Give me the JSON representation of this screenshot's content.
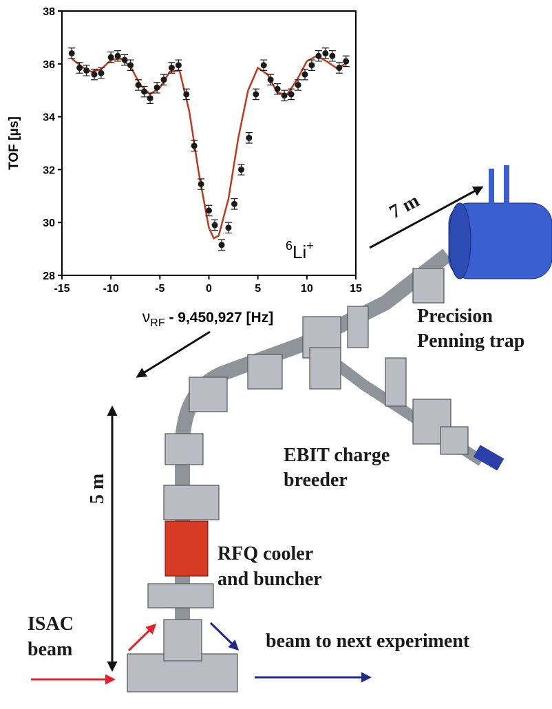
{
  "chart_data": {
    "type": "scatter",
    "ylabel": "TOF [μs]",
    "xlabel": [
      "ν",
      "RF",
      " - 9,450,927 [Hz]"
    ],
    "annotation": [
      "6",
      "Li",
      "+"
    ],
    "xlim": [
      -15,
      15
    ],
    "xticks": [
      -15,
      -10,
      -5,
      0,
      5,
      10,
      15
    ],
    "ylim": [
      28,
      38
    ],
    "yticks": [
      28,
      30,
      32,
      34,
      36,
      38
    ],
    "series": [
      {
        "type": "scatter",
        "color": "#1a1a1a",
        "x": [
          -14,
          -13.2,
          -12.5,
          -11.7,
          -11,
          -10,
          -9.3,
          -8.6,
          -8,
          -7.2,
          -6.6,
          -6,
          -5.3,
          -4.6,
          -3.8,
          -3.1,
          -2.3,
          -1.5,
          -0.8,
          0,
          0.6,
          1.3,
          2,
          2.6,
          3.3,
          4.1,
          4.8,
          5.6,
          6.3,
          7,
          7.7,
          8.4,
          9.1,
          9.8,
          10.5,
          11.2,
          11.9,
          12.6,
          13.3,
          14
        ],
        "values": [
          36.4,
          35.85,
          35.75,
          35.6,
          35.65,
          36.25,
          36.3,
          36.15,
          35.95,
          35.2,
          34.95,
          34.7,
          35.1,
          35.4,
          35.85,
          35.95,
          34.85,
          32.9,
          31.45,
          30.45,
          29.9,
          29.15,
          29.8,
          30.7,
          32,
          33.2,
          34.85,
          35.95,
          35.4,
          35.05,
          34.8,
          34.85,
          35.2,
          35.6,
          35.95,
          36.3,
          36.4,
          36.3,
          35.85,
          36.1
        ],
        "errors": [
          0.2,
          0.2,
          0.2,
          0.2,
          0.2,
          0.2,
          0.2,
          0.2,
          0.2,
          0.2,
          0.2,
          0.2,
          0.2,
          0.2,
          0.2,
          0.2,
          0.2,
          0.2,
          0.2,
          0.2,
          0.2,
          0.2,
          0.2,
          0.2,
          0.2,
          0.2,
          0.2,
          0.2,
          0.2,
          0.2,
          0.2,
          0.2,
          0.2,
          0.2,
          0.2,
          0.2,
          0.2,
          0.2,
          0.2,
          0.2
        ]
      },
      {
        "type": "line",
        "color": "#c0391b",
        "x": [
          -14,
          -13,
          -12,
          -11,
          -10,
          -9,
          -8,
          -7,
          -6,
          -5,
          -4,
          -3,
          -2,
          -1,
          0,
          0.5,
          1,
          2,
          3,
          4,
          5,
          6,
          7,
          8,
          9,
          10,
          11,
          12,
          13,
          14
        ],
        "values": [
          36.2,
          35.9,
          35.7,
          35.8,
          36.15,
          36.2,
          35.9,
          35.2,
          34.85,
          35.1,
          35.7,
          35.75,
          34.2,
          31.8,
          29.8,
          29.4,
          29.5,
          30.9,
          33.2,
          35.0,
          35.85,
          35.6,
          34.9,
          34.85,
          35.4,
          36.1,
          36.3,
          36.1,
          35.85,
          36.0
        ]
      }
    ]
  },
  "diagram": {
    "trap_distance": "7 m",
    "trap": [
      "Precision",
      "Penning trap"
    ],
    "ebit": [
      "EBIT charge",
      "breeder"
    ],
    "height": "5 m",
    "rfq": [
      "RFQ cooler",
      "and buncher"
    ],
    "isac": [
      "ISAC",
      "beam"
    ],
    "next": "beam to next experiment"
  }
}
